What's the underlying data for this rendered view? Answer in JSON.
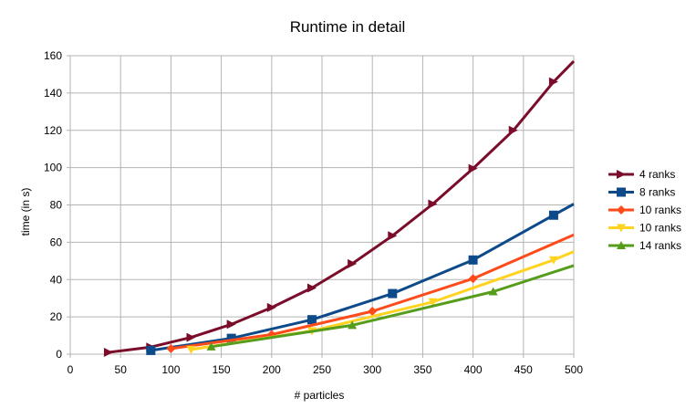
{
  "chart_data": {
    "type": "line",
    "title": "Runtime in detail",
    "xlabel": "# particles",
    "ylabel": "time (in s)",
    "xlim": [
      0,
      500
    ],
    "ylim": [
      0,
      160
    ],
    "x_ticks": [
      0,
      50,
      100,
      150,
      200,
      250,
      300,
      350,
      400,
      450,
      500
    ],
    "y_ticks": [
      0,
      20,
      40,
      60,
      80,
      100,
      120,
      140,
      160
    ],
    "grid": "vertical and horizontal major gridlines",
    "legend_position": "right",
    "series": [
      {
        "name": "4 ranks",
        "color": "#7b0c2a",
        "marker": "triangle-right",
        "x": [
          38,
          80,
          120,
          160,
          200,
          240,
          280,
          320,
          360,
          400,
          440,
          480,
          500
        ],
        "y": [
          1,
          3.8,
          9,
          16,
          25,
          35.5,
          48.5,
          63.5,
          80.5,
          99.5,
          120,
          146,
          157
        ]
      },
      {
        "name": "8 ranks",
        "color": "#0d4a8a",
        "marker": "square",
        "x": [
          80,
          160,
          240,
          320,
          400,
          480,
          500
        ],
        "y": [
          2,
          8.5,
          18.5,
          32.5,
          50.5,
          74.5,
          80.5
        ]
      },
      {
        "name": "10 ranks",
        "color": "#ff4a1a",
        "marker": "diamond",
        "x": [
          100,
          200,
          300,
          400,
          500
        ],
        "y": [
          3,
          10.5,
          23,
          40.5,
          64
        ]
      },
      {
        "name": "10 ranks",
        "color": "#ffd320",
        "marker": "triangle-down",
        "x": [
          120,
          240,
          360,
          480,
          500
        ],
        "y": [
          2.5,
          12.5,
          28,
          50.5,
          55
        ]
      },
      {
        "name": "14 ranks",
        "color": "#579d1c",
        "marker": "triangle-up",
        "x": [
          140,
          280,
          420,
          500
        ],
        "y": [
          4,
          15.5,
          33.5,
          47.5
        ]
      }
    ]
  }
}
